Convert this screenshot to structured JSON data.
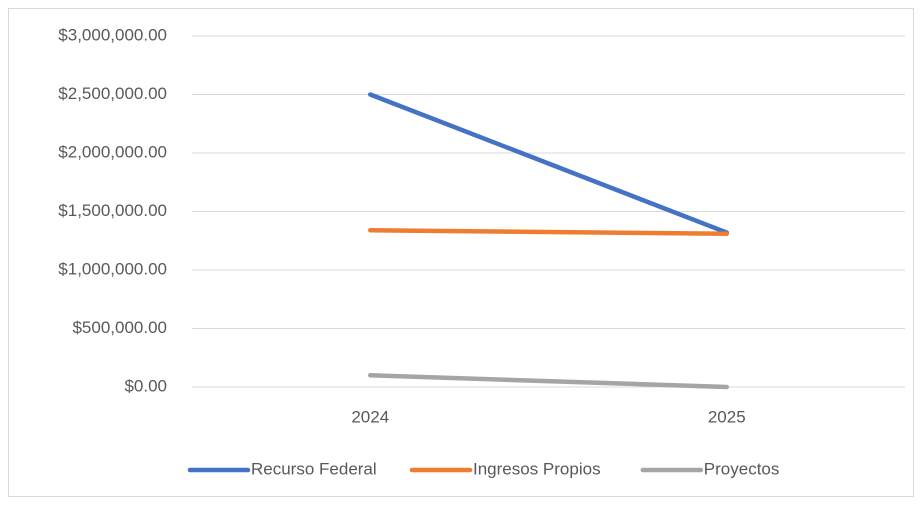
{
  "chart_data": {
    "type": "line",
    "categories": [
      "2024",
      "2025"
    ],
    "series": [
      {
        "name": "Recurso Federal",
        "color": "#4472c4",
        "values": [
          2500000,
          1320000
        ]
      },
      {
        "name": "Ingresos Propios",
        "color": "#ed7d31",
        "values": [
          1340000,
          1310000
        ]
      },
      {
        "name": "Proyectos",
        "color": "#a5a5a5",
        "values": [
          100000,
          0
        ]
      }
    ],
    "ylim": [
      0,
      3000000
    ],
    "yticks": [
      {
        "value": 0,
        "label": "$0.00"
      },
      {
        "value": 500000,
        "label": "$500,000.00"
      },
      {
        "value": 1000000,
        "label": "$1,000,000.00"
      },
      {
        "value": 1500000,
        "label": "$1,500,000.00"
      },
      {
        "value": 2000000,
        "label": "$2,000,000.00"
      },
      {
        "value": 2500000,
        "label": "$2,500,000.00"
      },
      {
        "value": 3000000,
        "label": "$3,000,000.00"
      }
    ],
    "grid": true,
    "legend": "bottom"
  }
}
